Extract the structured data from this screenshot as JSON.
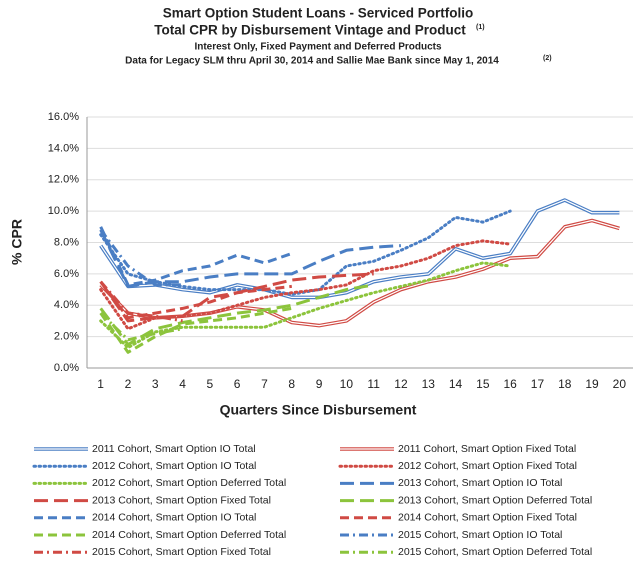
{
  "chart_data": {
    "type": "line",
    "title": "Smart Option Student Loans - Serviced Portfolio",
    "title2": "Total CPR by Disbursement Vintage and Product",
    "title2_note": "(1)",
    "subtitle": "Interest Only, Fixed Payment and Deferred Products",
    "subtitle2": "Data for Legacy SLM thru April 30, 2014 and Sallie Mae Bank since May 1, 2014",
    "subtitle2_note": "(2)",
    "xlabel": "Quarters Since Disbursement",
    "ylabel": "% CPR",
    "categories": [
      1,
      2,
      3,
      4,
      5,
      6,
      7,
      8,
      9,
      10,
      11,
      12,
      13,
      14,
      15,
      16,
      17,
      18,
      19,
      20
    ],
    "ylim": [
      0,
      16
    ],
    "yticks": [
      {
        "value": 0,
        "label": "0.0%"
      },
      {
        "value": 2,
        "label": "2.0%"
      },
      {
        "value": 4,
        "label": "4.0%"
      },
      {
        "value": 6,
        "label": "6.0%"
      },
      {
        "value": 8,
        "label": "8.0%"
      },
      {
        "value": 10,
        "label": "10.0%"
      },
      {
        "value": 12,
        "label": "12.0%"
      },
      {
        "value": 14,
        "label": "14.0%"
      },
      {
        "value": 16,
        "label": "16.0%"
      }
    ],
    "grid": true,
    "series": [
      {
        "name": "2011 Cohort, Smart Option IO Total",
        "color": "#4a7ec4",
        "dash": "double",
        "values": [
          7.8,
          5.2,
          5.3,
          5.0,
          4.8,
          5.3,
          5.0,
          4.5,
          4.5,
          4.8,
          5.5,
          5.8,
          6.0,
          7.6,
          7.0,
          7.3,
          10.0,
          10.7,
          9.9,
          9.9
        ]
      },
      {
        "name": "2011 Cohort, Smart Option Fixed Total",
        "color": "#d04a44",
        "dash": "double",
        "values": [
          5.3,
          3.5,
          3.2,
          3.3,
          3.5,
          3.9,
          3.7,
          2.9,
          2.7,
          3.0,
          4.2,
          5.0,
          5.5,
          5.8,
          6.3,
          7.0,
          7.1,
          9.0,
          9.4,
          8.9
        ]
      },
      {
        "name": "2012 Cohort, Smart Option IO Total",
        "color": "#4a7ec4",
        "dash": "dotted",
        "values": [
          8.5,
          6.0,
          5.5,
          5.2,
          5.0,
          5.0,
          5.0,
          4.7,
          5.0,
          6.5,
          6.8,
          7.5,
          8.3,
          9.6,
          9.3,
          10.0,
          null,
          null,
          null,
          null
        ]
      },
      {
        "name": "2012 Cohort, Smart Option Fixed Total",
        "color": "#d04a44",
        "dash": "dotted",
        "values": [
          5.0,
          2.5,
          3.2,
          3.3,
          3.5,
          4.0,
          4.5,
          4.8,
          5.0,
          5.3,
          6.2,
          6.5,
          7.0,
          7.8,
          8.1,
          7.9,
          null,
          null,
          null,
          null
        ]
      },
      {
        "name": "2012 Cohort, Smart Option Deferred Total",
        "color": "#8cc43c",
        "dash": "dotted",
        "values": [
          3.0,
          1.3,
          2.3,
          2.6,
          2.6,
          2.6,
          2.6,
          3.2,
          3.8,
          4.3,
          4.8,
          5.2,
          5.6,
          6.2,
          6.7,
          6.5,
          null,
          null,
          null,
          null
        ]
      },
      {
        "name": "2013 Cohort, Smart Option IO Total",
        "color": "#4a7ec4",
        "dash": "long",
        "values": [
          8.8,
          5.2,
          5.5,
          5.5,
          5.8,
          6.0,
          6.0,
          6.0,
          6.8,
          7.5,
          7.7,
          7.8,
          null,
          null,
          null,
          null,
          null,
          null,
          null,
          null
        ]
      },
      {
        "name": "2013 Cohort, Smart Option Fixed Total",
        "color": "#d04a44",
        "dash": "long",
        "values": [
          5.5,
          3.0,
          3.2,
          3.3,
          4.5,
          4.8,
          5.2,
          5.6,
          5.8,
          5.9,
          6.0,
          null,
          null,
          null,
          null,
          null,
          null,
          null,
          null,
          null
        ]
      },
      {
        "name": "2013 Cohort, Smart Option Deferred Total",
        "color": "#8cc43c",
        "dash": "long",
        "values": [
          3.8,
          1.5,
          2.5,
          2.9,
          3.2,
          3.5,
          3.7,
          4.0,
          4.5,
          5.0,
          5.3,
          null,
          null,
          null,
          null,
          null,
          null,
          null,
          null,
          null
        ]
      },
      {
        "name": "2014 Cohort, Smart Option IO Total",
        "color": "#4a7ec4",
        "dash": "dash",
        "values": [
          9.0,
          5.3,
          5.6,
          6.2,
          6.5,
          7.2,
          6.7,
          7.3,
          null,
          null,
          null,
          null,
          null,
          null,
          null,
          null,
          null,
          null,
          null,
          null
        ]
      },
      {
        "name": "2014 Cohort, Smart Option Fixed Total",
        "color": "#d04a44",
        "dash": "dash",
        "values": [
          5.5,
          3.2,
          3.5,
          3.8,
          4.2,
          4.8,
          5.0,
          5.2,
          null,
          null,
          null,
          null,
          null,
          null,
          null,
          null,
          null,
          null,
          null,
          null
        ]
      },
      {
        "name": "2014 Cohort, Smart Option Deferred Total",
        "color": "#8cc43c",
        "dash": "dash",
        "values": [
          3.5,
          1.0,
          2.0,
          2.8,
          3.0,
          3.2,
          3.5,
          3.8,
          null,
          null,
          null,
          null,
          null,
          null,
          null,
          null,
          null,
          null,
          null,
          null
        ]
      },
      {
        "name": "2015 Cohort, Smart Option IO Total",
        "color": "#4a7ec4",
        "dash": "dashdot",
        "values": [
          8.8,
          6.5,
          5.3,
          5.3,
          null,
          null,
          null,
          null,
          null,
          null,
          null,
          null,
          null,
          null,
          null,
          null,
          null,
          null,
          null,
          null
        ]
      },
      {
        "name": "2015 Cohort, Smart Option Fixed Total",
        "color": "#d04a44",
        "dash": "dashdot",
        "values": [
          5.5,
          3.5,
          3.3,
          3.0,
          null,
          null,
          null,
          null,
          null,
          null,
          null,
          null,
          null,
          null,
          null,
          null,
          null,
          null,
          null,
          null
        ]
      },
      {
        "name": "2015 Cohort, Smart Option Deferred Total",
        "color": "#8cc43c",
        "dash": "dashdot",
        "values": [
          3.5,
          1.8,
          2.2,
          2.5,
          null,
          null,
          null,
          null,
          null,
          null,
          null,
          null,
          null,
          null,
          null,
          null,
          null,
          null,
          null,
          null
        ]
      }
    ]
  }
}
